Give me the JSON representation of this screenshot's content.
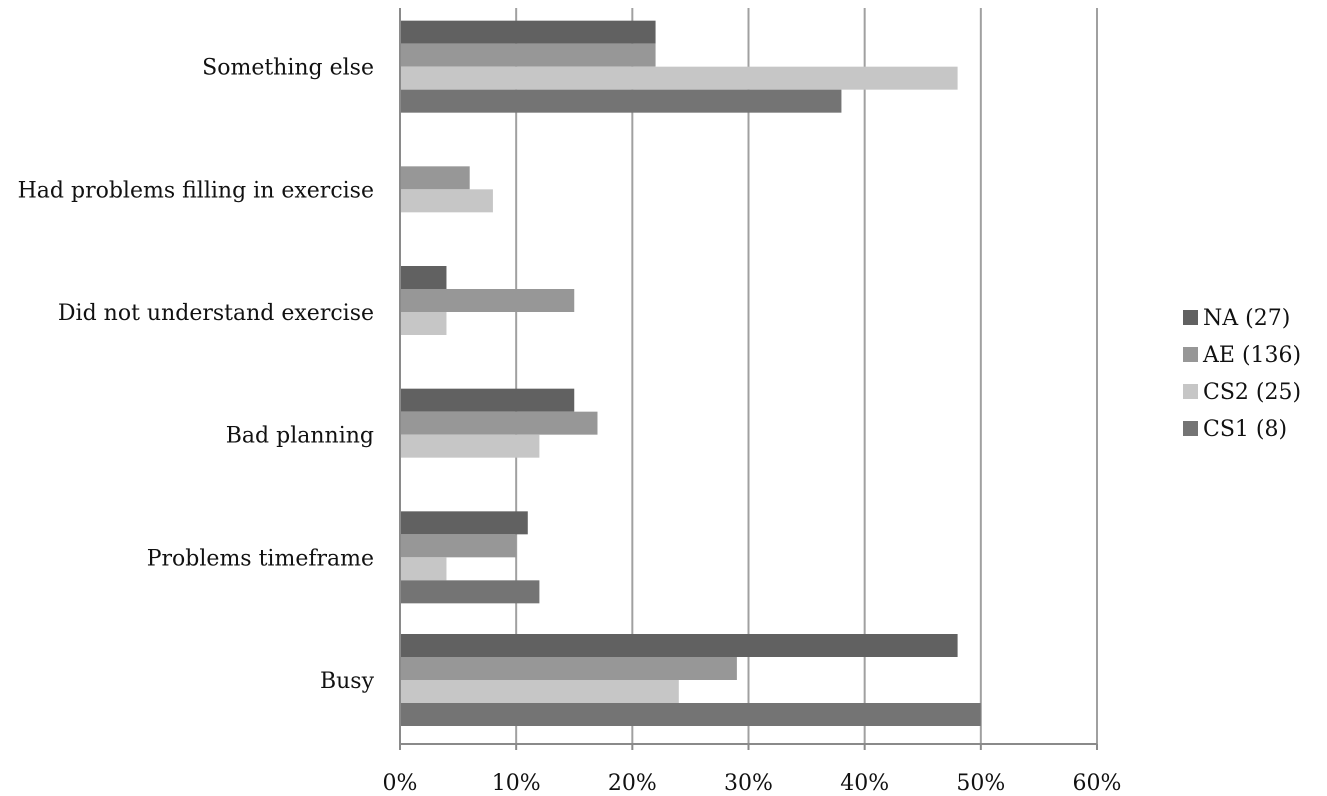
{
  "chart_data": {
    "type": "bar",
    "orientation": "horizontal",
    "categories": [
      "Busy",
      "Problems timeframe",
      "Bad planning",
      "Did not understand exercise",
      "Had problems filling in exercise",
      "Something else"
    ],
    "series": [
      {
        "name": "NA (27)",
        "color": "#616161",
        "values": [
          48,
          11,
          15,
          4,
          0,
          22
        ]
      },
      {
        "name": "AE (136)",
        "color": "#979797",
        "values": [
          29,
          10,
          17,
          15,
          6,
          22
        ]
      },
      {
        "name": "CS2 (25)",
        "color": "#c6c6c6",
        "values": [
          24,
          4,
          12,
          4,
          8,
          48
        ]
      },
      {
        "name": "CS1 (8)",
        "color": "#747474",
        "values": [
          50,
          12,
          0,
          0,
          0,
          38
        ]
      }
    ],
    "x_ticks": [
      "0%",
      "10%",
      "20%",
      "30%",
      "40%",
      "50%",
      "60%"
    ],
    "xlim": [
      0,
      60
    ],
    "grid": true,
    "legend_position": "right",
    "title": "",
    "xlabel": "",
    "ylabel": ""
  }
}
